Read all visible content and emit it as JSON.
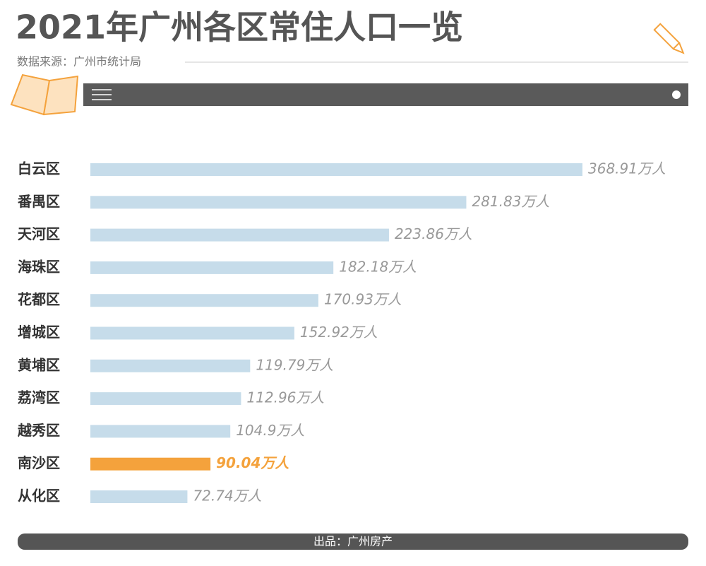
{
  "chart_data": {
    "type": "bar",
    "orientation": "horizontal",
    "title": "2021年广州各区常住人口一览",
    "subtitle": "数据来源：广州市统计局",
    "footer": "出品：广州房产",
    "categories": [
      "白云区",
      "番禺区",
      "天河区",
      "海珠区",
      "花都区",
      "增城区",
      "黄埔区",
      "荔湾区",
      "越秀区",
      "南沙区",
      "从化区"
    ],
    "values": [
      368.91,
      281.83,
      223.86,
      182.18,
      170.93,
      152.92,
      119.79,
      112.96,
      104.9,
      90.04,
      72.74
    ],
    "value_labels": [
      "368.91万人",
      "281.83万人",
      "223.86万人",
      "182.18万人",
      "170.93万人",
      "152.92万人",
      "119.79万人",
      "112.96万人",
      "104.9万人",
      "90.04万人",
      "72.74万人"
    ],
    "colors": [
      "#c6dcea",
      "#c6dcea",
      "#c6dcea",
      "#c6dcea",
      "#c6dcea",
      "#c6dcea",
      "#c6dcea",
      "#c6dcea",
      "#c6dcea",
      "#f4a23c",
      "#c6dcea"
    ]
  }
}
